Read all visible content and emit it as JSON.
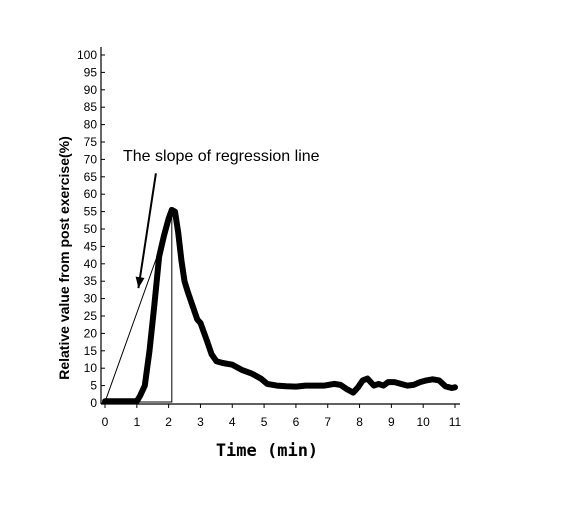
{
  "chart_data": {
    "type": "line",
    "xlabel": "Time (min)",
    "ylabel": "Relative value from post exercise(%)",
    "xlim": [
      0,
      11
    ],
    "ylim": [
      0,
      100
    ],
    "x_ticks": [
      "0",
      "1",
      "2",
      "3",
      "4",
      "5",
      "6",
      "7",
      "8",
      "9",
      "10",
      "11"
    ],
    "y_ticks": [
      "0",
      "5",
      "10",
      "15",
      "20",
      "25",
      "30",
      "35",
      "40",
      "45",
      "50",
      "55",
      "60",
      "65",
      "70",
      "75",
      "80",
      "85",
      "90",
      "95",
      "100"
    ],
    "grid": false,
    "annotation": "The slope of regression line",
    "series": [
      {
        "x": [
          0,
          0.5,
          1.0,
          1.1,
          1.25,
          1.4,
          1.55,
          1.7,
          1.85,
          2.0,
          2.1,
          2.2,
          2.3,
          2.4,
          2.5,
          2.6,
          2.75,
          2.9,
          3.0,
          3.2,
          3.35,
          3.5,
          3.7,
          4.0,
          4.3,
          4.6,
          4.9,
          5.1,
          5.4,
          5.7,
          6.0,
          6.3,
          6.6,
          6.9,
          7.2,
          7.4,
          7.6,
          7.8,
          7.95,
          8.1,
          8.25,
          8.45,
          8.6,
          8.75,
          8.9,
          9.1,
          9.3,
          9.5,
          9.7,
          9.9,
          10.1,
          10.3,
          10.5,
          10.7,
          10.9,
          11.0
        ],
        "y": [
          0.5,
          0.5,
          0.5,
          2,
          5,
          15,
          28,
          42,
          48,
          53,
          55.5,
          55,
          49,
          41,
          35,
          32,
          28,
          24,
          23,
          18,
          14,
          12,
          11.5,
          11,
          9.5,
          8.5,
          7,
          5.5,
          5,
          4.8,
          4.7,
          5,
          5,
          5,
          5.5,
          5.2,
          4,
          3,
          4.5,
          6.5,
          7,
          5,
          5.5,
          5,
          6,
          6,
          5.5,
          5,
          5.2,
          6,
          6.5,
          6.8,
          6.5,
          4.8,
          4.3,
          4.5
        ]
      }
    ],
    "regression_triangle": {
      "apex": [
        2.1,
        54
      ],
      "base_start": [
        0,
        0.3
      ],
      "base_end": [
        2.1,
        0.3
      ]
    },
    "arrow_from_to": {
      "from": [
        1.6,
        66
      ],
      "to": [
        1.05,
        33
      ]
    }
  }
}
